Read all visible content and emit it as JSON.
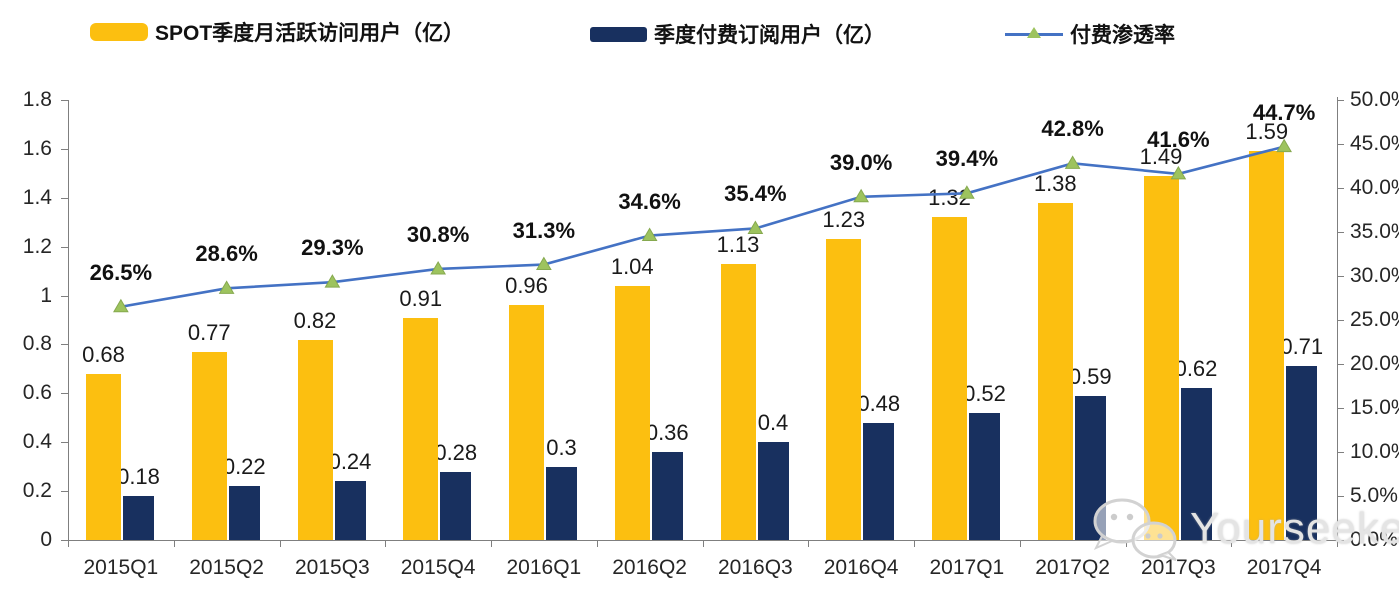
{
  "legend": {
    "items": [
      {
        "label": "SPOT季度月活跃访问用户（亿）"
      },
      {
        "label": "季度付费订阅用户（亿）"
      },
      {
        "label": "付费渗透率"
      }
    ]
  },
  "colors": {
    "mau_bar": "#FCBF10",
    "subs_bar": "#18305F",
    "line": "#4472C4",
    "marker": "#9DC35E",
    "marker_edge": "#86A94F",
    "axis": "#7f7f7f"
  },
  "chart_data": {
    "type": "bar-line-combo",
    "categories": [
      "2015Q1",
      "2015Q2",
      "2015Q3",
      "2015Q4",
      "2016Q1",
      "2016Q2",
      "2016Q3",
      "2016Q4",
      "2017Q1",
      "2017Q2",
      "2017Q3",
      "2017Q4"
    ],
    "series": [
      {
        "name": "SPOT季度月活跃访问用户（亿）",
        "type": "bar",
        "axis": "left",
        "values": [
          0.68,
          0.77,
          0.82,
          0.91,
          0.96,
          1.04,
          1.13,
          1.23,
          1.32,
          1.38,
          1.49,
          1.59
        ]
      },
      {
        "name": "季度付费订阅用户（亿）",
        "type": "bar",
        "axis": "left",
        "values": [
          0.18,
          0.22,
          0.24,
          0.28,
          0.3,
          0.36,
          0.4,
          0.48,
          0.52,
          0.59,
          0.62,
          0.71
        ]
      },
      {
        "name": "付费渗透率",
        "type": "line",
        "axis": "right",
        "unit": "%",
        "values": [
          26.5,
          28.6,
          29.3,
          30.8,
          31.3,
          34.6,
          35.4,
          39.0,
          39.4,
          42.8,
          41.6,
          44.7
        ]
      }
    ],
    "left_axis": {
      "min": 0,
      "max": 1.8,
      "ticks": [
        "0",
        "0.2",
        "0.4",
        "0.6",
        "0.8",
        "1",
        "1.2",
        "1.4",
        "1.6",
        "1.8"
      ]
    },
    "right_axis": {
      "min": 0,
      "max": 50,
      "ticks": [
        "0.0%",
        "5.0%",
        "10.0%",
        "15.0%",
        "20.0%",
        "25.0%",
        "30.0%",
        "35.0%",
        "40.0%",
        "45.0%",
        "50.0%"
      ]
    },
    "grid": false,
    "legend_position": "top"
  },
  "watermark": {
    "text": "Yourseeker",
    "icon": "wechat-icon"
  }
}
